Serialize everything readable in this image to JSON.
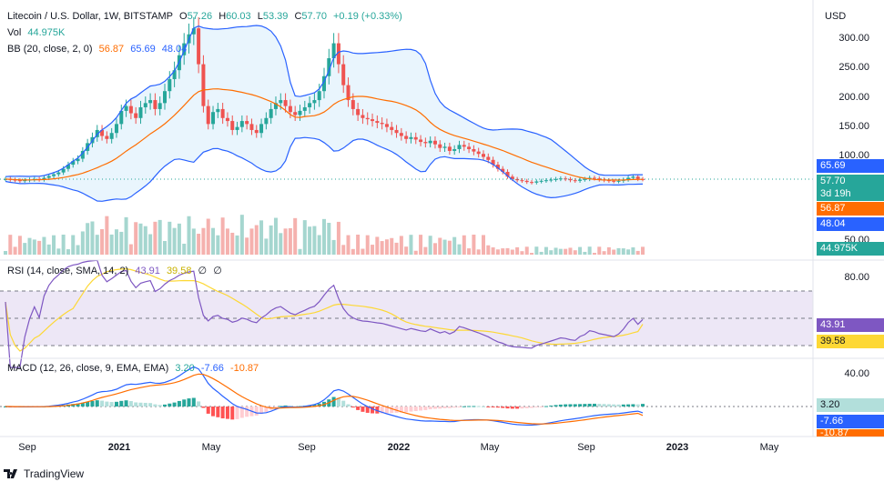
{
  "header": {
    "symbol": "Litecoin / U.S. Dollar, 1W, BITSTAMP",
    "open_label": "O",
    "open": "57.26",
    "high_label": "H",
    "high": "60.03",
    "low_label": "L",
    "low": "53.39",
    "close_label": "C",
    "close": "57.70",
    "change": "+0.19 (+0.33%)",
    "currency": "USD"
  },
  "vol_legend": {
    "label": "Vol",
    "value": "44.975K"
  },
  "bb_legend": {
    "label": "BB (20, close, 2, 0)",
    "basis": "56.87",
    "upper": "65.69",
    "lower": "48.04"
  },
  "rsi_legend": {
    "label": "RSI (14, close, SMA, 14, 2)",
    "rsi": "43.91",
    "sma": "39.58",
    "extra1": "∅",
    "extra2": "∅"
  },
  "macd_legend": {
    "label": "MACD (12, 26, close, 9, EMA, EMA)",
    "hist": "3.20",
    "macd": "-7.66",
    "signal": "-10.87"
  },
  "price_tags": {
    "upper": "65.69",
    "price": "57.70",
    "countdown": "3d 19h",
    "basis": "56.87",
    "lower": "48.04",
    "volume": "44.975K",
    "rsi": "43.91",
    "rsi_sma": "39.58",
    "macd_hist": "3.20",
    "macd": "-7.66",
    "signal": "-10.87"
  },
  "price_axis_ticks": [
    "300.00",
    "250.00",
    "200.00",
    "150.00",
    "100.00",
    "50.00"
  ],
  "rsi_axis_ticks": [
    "80.00"
  ],
  "macd_axis_ticks": [
    "40.00"
  ],
  "time_axis": [
    "Sep",
    "2021",
    "May",
    "Sep",
    "2022",
    "May",
    "Sep",
    "2023",
    "May"
  ],
  "footer": {
    "brand": "TradingView"
  },
  "colors": {
    "up": "#26a69a",
    "down": "#ef5350",
    "bb_upper": "#2962ff",
    "bb_basis": "#ff6d00",
    "bb_fill": "#e3f2fd",
    "rsi": "#7e57c2",
    "rsi_sma": "#fdd835",
    "rsi_band": "#ede7f6",
    "macd": "#2962ff",
    "signal": "#ff6d00",
    "vol_up": "#a5d6cf",
    "vol_down": "#f5b1ae"
  },
  "chart_data": {
    "type": "candlestick",
    "interval": "1W",
    "price_range": [
      40,
      330
    ],
    "weekly_close": [
      58,
      57,
      56,
      55,
      56,
      57,
      58,
      57,
      60,
      63,
      66,
      69,
      75,
      82,
      88,
      92,
      105,
      118,
      128,
      140,
      130,
      125,
      135,
      150,
      172,
      180,
      168,
      160,
      178,
      185,
      190,
      175,
      185,
      205,
      225,
      240,
      265,
      285,
      300,
      310,
      250,
      180,
      150,
      170,
      175,
      160,
      155,
      140,
      145,
      155,
      150,
      140,
      135,
      150,
      160,
      175,
      185,
      190,
      180,
      170,
      165,
      172,
      178,
      185,
      190,
      205,
      230,
      260,
      285,
      250,
      215,
      190,
      175,
      165,
      160,
      158,
      155,
      152,
      150,
      145,
      140,
      135,
      130,
      125,
      128,
      124,
      120,
      118,
      122,
      116,
      110,
      112,
      105,
      108,
      115,
      112,
      108,
      104,
      100,
      95,
      90,
      82,
      75,
      70,
      62,
      58,
      56,
      55,
      53,
      52,
      54,
      55,
      56,
      57,
      58,
      59,
      58,
      56,
      55,
      57,
      58,
      60,
      59,
      57,
      56,
      55,
      54,
      55,
      57,
      60,
      62,
      58,
      57.7
    ],
    "volume_note": "weekly volume bars, latest 44.975K",
    "bollinger": {
      "period": 20,
      "upper_last": 65.69,
      "basis_last": 56.87,
      "lower_last": 48.04
    },
    "rsi": {
      "range": [
        20,
        80
      ],
      "last": 43.91,
      "sma_last": 39.58
    },
    "macd": {
      "last_macd": -7.66,
      "last_signal": -10.87,
      "last_hist": 3.2
    }
  }
}
